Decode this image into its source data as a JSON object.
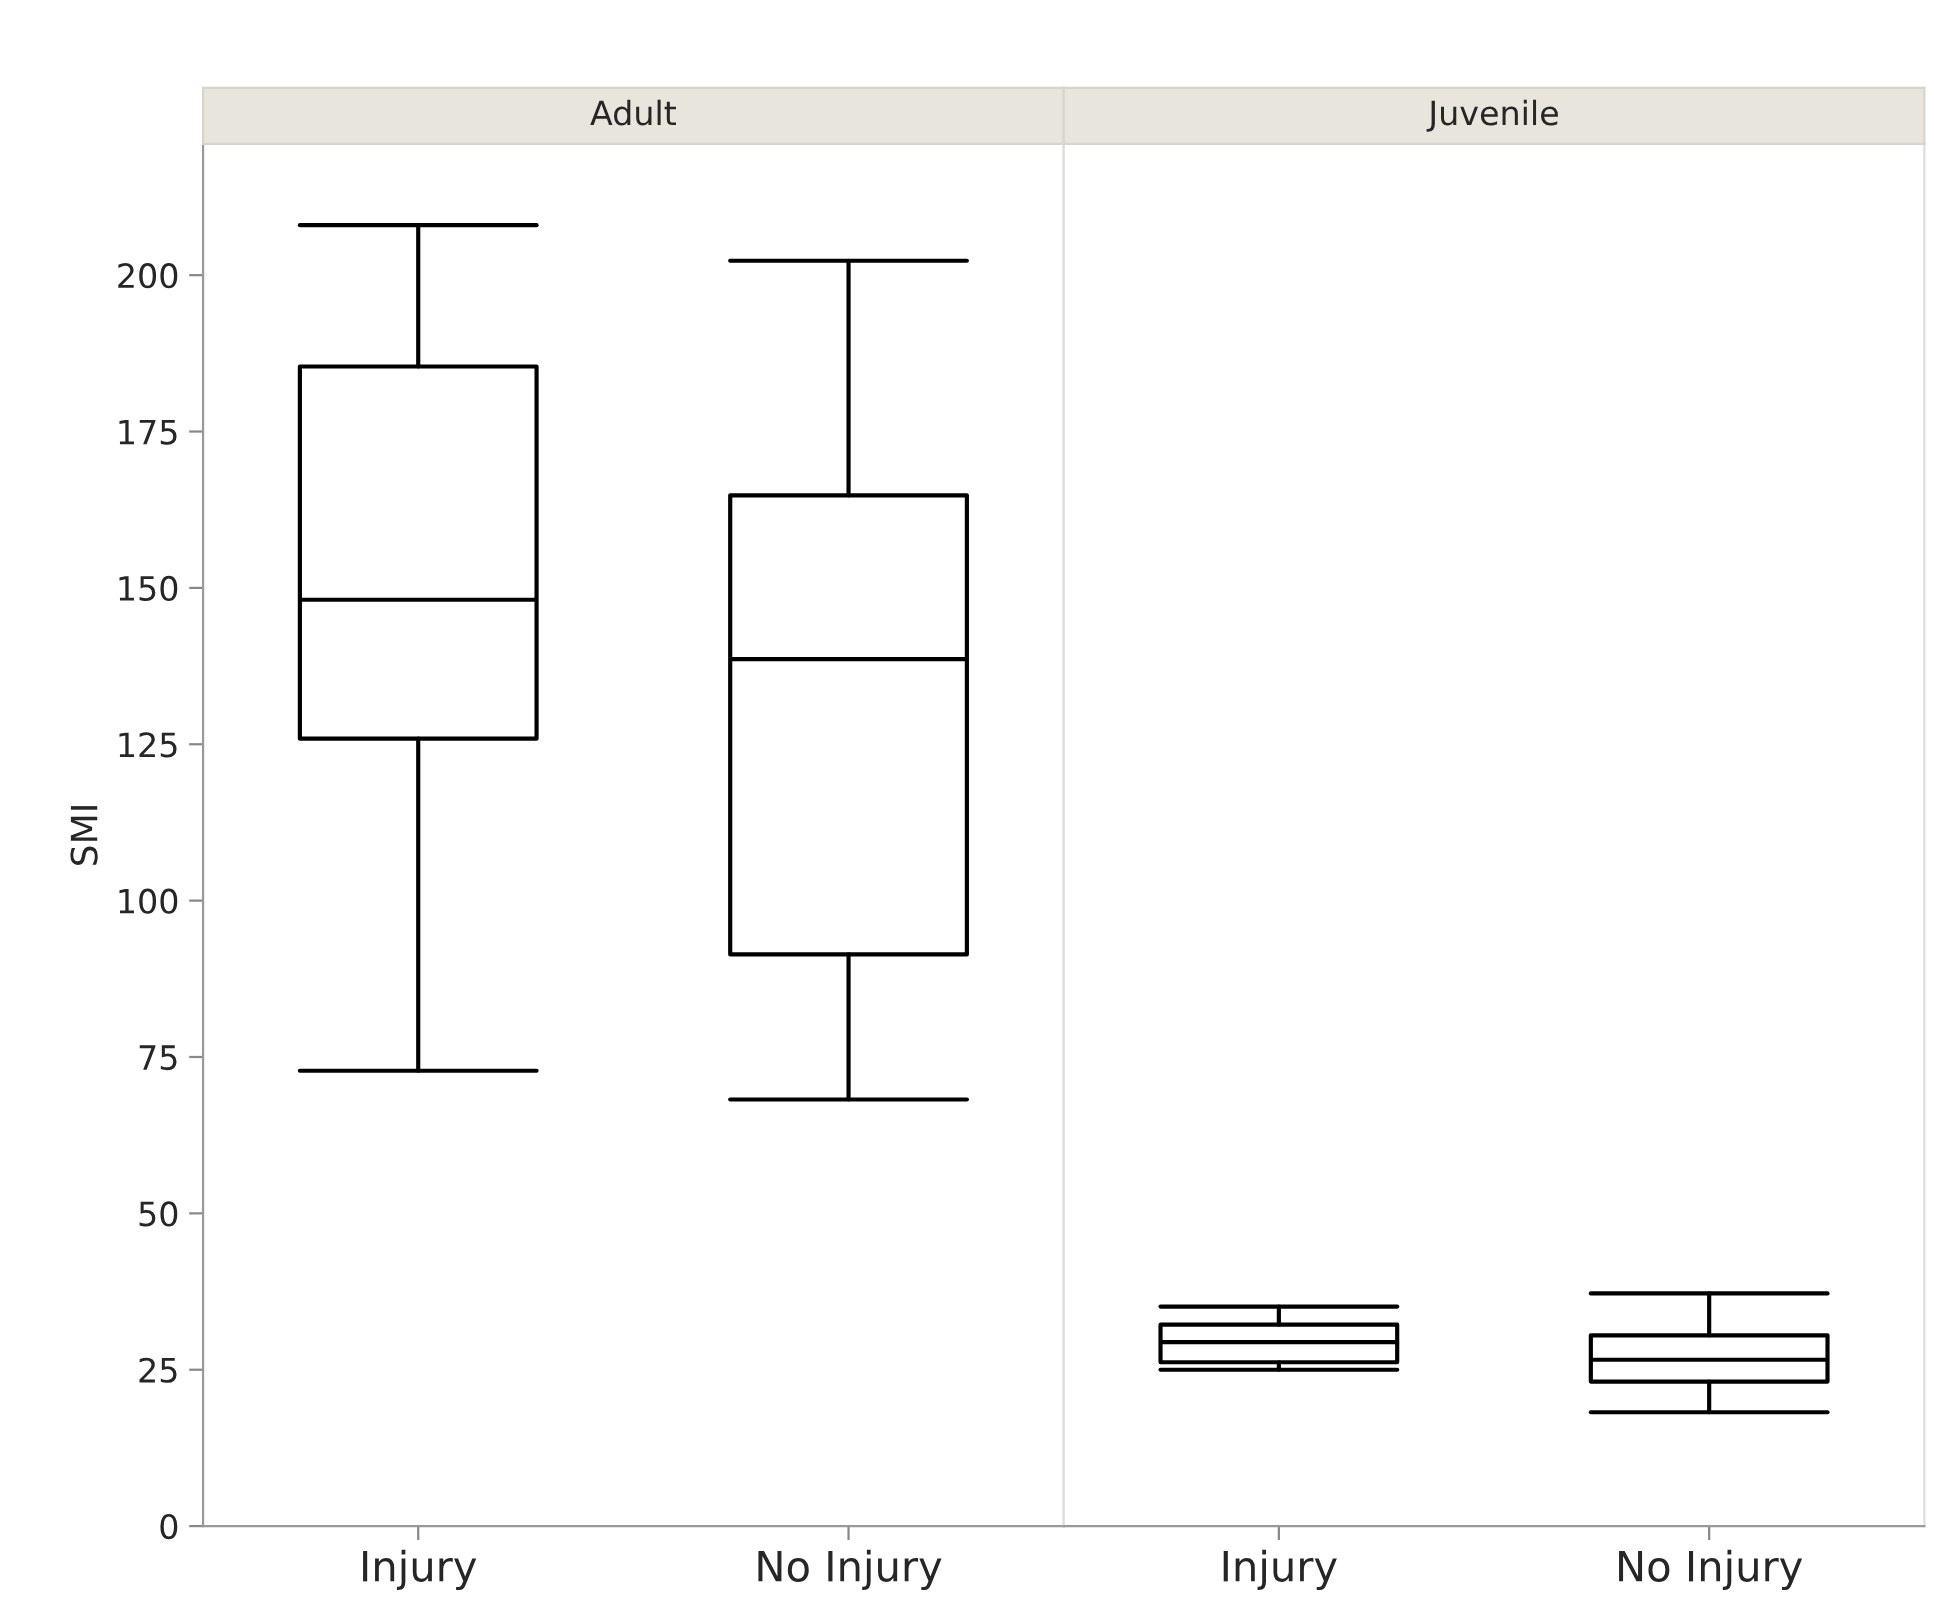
{
  "chart_data": [
    {
      "type": "box",
      "title": "Adult",
      "ylabel": "SMI",
      "categories": [
        "Injury",
        "No Injury"
      ],
      "ylim": [
        0,
        221
      ],
      "yticks": [
        0,
        25,
        50,
        75,
        100,
        125,
        150,
        175,
        200
      ],
      "grid": false,
      "boxes": [
        {
          "low": 72.8,
          "q1": 125.9,
          "median": 148.1,
          "q3": 185.4,
          "high": 208.0
        },
        {
          "low": 68.2,
          "q1": 91.4,
          "median": 138.6,
          "q3": 164.8,
          "high": 202.3
        }
      ]
    },
    {
      "type": "box",
      "title": "Juvenile",
      "categories": [
        "Injury",
        "No Injury"
      ],
      "ylim": [
        0,
        221
      ],
      "tick_labels": "x",
      "grid": false,
      "boxes": [
        {
          "low": 25.0,
          "q1": 26.2,
          "median": 29.4,
          "q3": 32.2,
          "high": 35.1
        },
        {
          "low": 18.2,
          "q1": 23.1,
          "median": 26.6,
          "q3": 30.5,
          "high": 37.2
        }
      ]
    }
  ]
}
